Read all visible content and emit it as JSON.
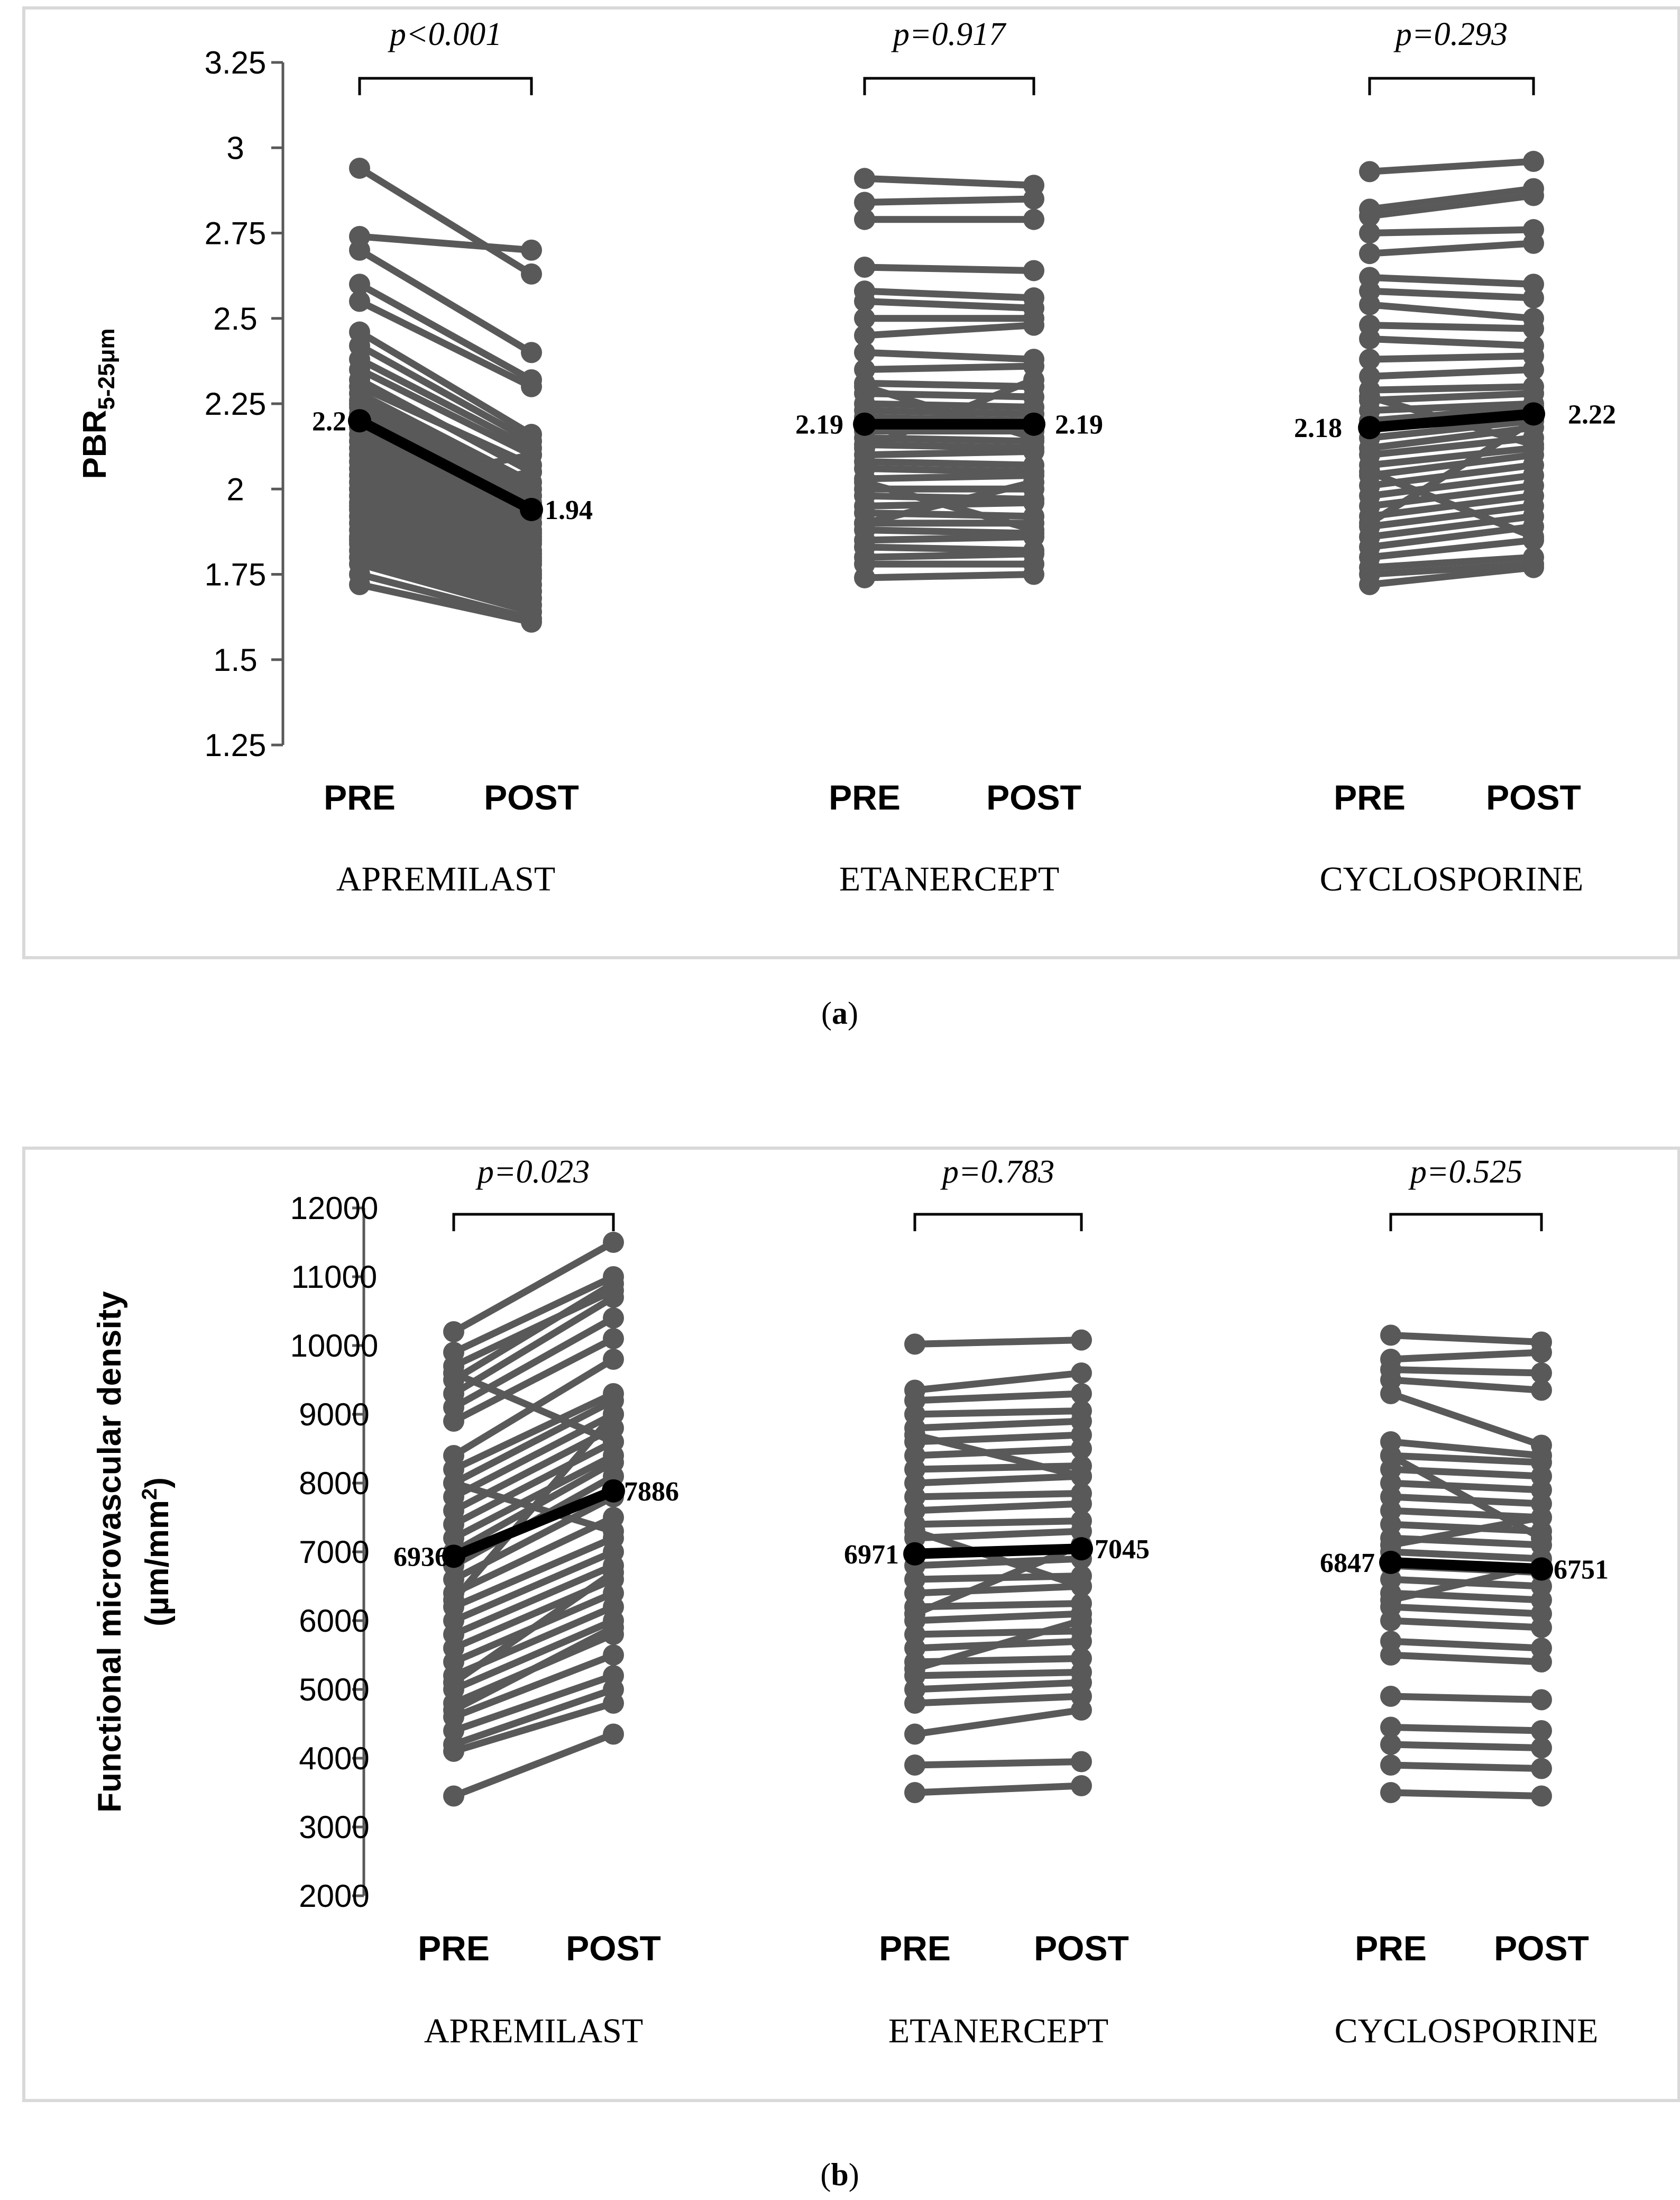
{
  "figure_captions": {
    "a": "(a)",
    "b": "(b)"
  },
  "panel_letters": {
    "a": "a",
    "b": "b"
  },
  "colors": {
    "subject_line": "#595959",
    "mean_line": "#000000",
    "axis": "#595959",
    "panel_border": "#d9d9d9",
    "accent_green": "#4f7f2a"
  },
  "chart_data": [
    {
      "type": "line",
      "panel": "a",
      "ylabel_main": "PBR",
      "ylabel_sub": "5-25μm",
      "ylim": [
        1.25,
        3.25
      ],
      "yticks": [
        "1.25",
        "1.5",
        "1.75",
        "2",
        "2.25",
        "2.5",
        "2.75",
        "3",
        "3.25"
      ],
      "tick_values": [
        1.25,
        1.5,
        1.75,
        2,
        2.25,
        2.5,
        2.75,
        3,
        3.25
      ],
      "groups": [
        {
          "name": "APREMILAST",
          "pre_label": "PRE",
          "post_label": "POST",
          "pvalue": "p<0.001",
          "mean_pre": 2.2,
          "mean_post": 1.94,
          "mean_pre_label": "2.2",
          "mean_post_label": "1.94",
          "pairs": [
            [
              2.94,
              2.63
            ],
            [
              2.74,
              2.7
            ],
            [
              2.7,
              2.4
            ],
            [
              2.6,
              2.32
            ],
            [
              2.55,
              2.3
            ],
            [
              2.46,
              2.16
            ],
            [
              2.42,
              2.14
            ],
            [
              2.38,
              2.12
            ],
            [
              2.35,
              2.1
            ],
            [
              2.32,
              2.05
            ],
            [
              2.3,
              2.07
            ],
            [
              2.28,
              2.02
            ],
            [
              2.26,
              2.0
            ],
            [
              2.24,
              1.98
            ],
            [
              2.22,
              1.96
            ],
            [
              2.2,
              1.95
            ],
            [
              2.18,
              1.94
            ],
            [
              2.16,
              1.92
            ],
            [
              2.14,
              1.9
            ],
            [
              2.12,
              1.88
            ],
            [
              2.1,
              1.87
            ],
            [
              2.08,
              1.86
            ],
            [
              2.06,
              1.85
            ],
            [
              2.04,
              1.84
            ],
            [
              2.02,
              1.82
            ],
            [
              2.0,
              1.81
            ],
            [
              1.98,
              1.8
            ],
            [
              1.96,
              1.79
            ],
            [
              1.94,
              1.78
            ],
            [
              1.92,
              1.76
            ],
            [
              1.9,
              1.75
            ],
            [
              1.88,
              1.74
            ],
            [
              1.86,
              1.72
            ],
            [
              1.84,
              1.7
            ],
            [
              1.82,
              1.68
            ],
            [
              1.8,
              1.66
            ],
            [
              1.78,
              1.64
            ],
            [
              1.75,
              1.62
            ],
            [
              1.72,
              1.61
            ],
            [
              2.0,
              2.1
            ],
            [
              1.95,
              2.05
            ],
            [
              2.25,
              1.9
            ],
            [
              1.85,
              1.95
            ]
          ]
        },
        {
          "name": "ETANERCEPT",
          "pre_label": "PRE",
          "post_label": "POST",
          "pvalue": "p=0.917",
          "mean_pre": 2.19,
          "mean_post": 2.19,
          "mean_pre_label": "2.19",
          "mean_post_label": "2.19",
          "pairs": [
            [
              2.91,
              2.89
            ],
            [
              2.84,
              2.85
            ],
            [
              2.79,
              2.79
            ],
            [
              2.65,
              2.64
            ],
            [
              2.58,
              2.56
            ],
            [
              2.55,
              2.53
            ],
            [
              2.5,
              2.5
            ],
            [
              2.45,
              2.48
            ],
            [
              2.4,
              2.38
            ],
            [
              2.35,
              2.36
            ],
            [
              2.31,
              2.3
            ],
            [
              2.28,
              2.27
            ],
            [
              2.25,
              2.24
            ],
            [
              2.23,
              2.22
            ],
            [
              2.21,
              2.2
            ],
            [
              2.19,
              2.19
            ],
            [
              2.17,
              2.17
            ],
            [
              2.15,
              2.14
            ],
            [
              2.13,
              2.12
            ],
            [
              2.1,
              2.11
            ],
            [
              2.08,
              2.07
            ],
            [
              2.06,
              2.05
            ],
            [
              2.03,
              2.04
            ],
            [
              2.0,
              2.0
            ],
            [
              1.98,
              1.97
            ],
            [
              1.95,
              1.96
            ],
            [
              1.93,
              1.92
            ],
            [
              1.9,
              1.9
            ],
            [
              1.88,
              1.87
            ],
            [
              1.85,
              1.86
            ],
            [
              1.83,
              1.82
            ],
            [
              1.8,
              1.81
            ],
            [
              1.78,
              1.78
            ],
            [
              1.74,
              1.75
            ],
            [
              2.3,
              2.15
            ],
            [
              2.12,
              2.32
            ],
            [
              1.9,
              2.02
            ],
            [
              2.02,
              1.88
            ]
          ]
        },
        {
          "name": "CYCLOSPORINE",
          "pre_label": "PRE",
          "post_label": "POST",
          "pvalue": "p=0.293",
          "mean_pre": 2.18,
          "mean_post": 2.22,
          "mean_pre_label": "2.18",
          "mean_post_label": "2.22",
          "pairs": [
            [
              2.93,
              2.96
            ],
            [
              2.82,
              2.88
            ],
            [
              2.8,
              2.86
            ],
            [
              2.75,
              2.76
            ],
            [
              2.69,
              2.72
            ],
            [
              2.62,
              2.6
            ],
            [
              2.58,
              2.56
            ],
            [
              2.54,
              2.5
            ],
            [
              2.48,
              2.47
            ],
            [
              2.44,
              2.42
            ],
            [
              2.38,
              2.39
            ],
            [
              2.33,
              2.35
            ],
            [
              2.29,
              2.3
            ],
            [
              2.26,
              2.28
            ],
            [
              2.23,
              2.25
            ],
            [
              2.2,
              2.24
            ],
            [
              2.18,
              2.22
            ],
            [
              2.15,
              2.2
            ],
            [
              2.12,
              2.18
            ],
            [
              2.1,
              2.15
            ],
            [
              2.07,
              2.12
            ],
            [
              2.04,
              2.1
            ],
            [
              2.01,
              2.07
            ],
            [
              1.98,
              2.04
            ],
            [
              1.95,
              2.01
            ],
            [
              1.92,
              1.98
            ],
            [
              1.89,
              1.95
            ],
            [
              1.86,
              1.92
            ],
            [
              1.83,
              1.89
            ],
            [
              1.8,
              1.85
            ],
            [
              1.77,
              1.8
            ],
            [
              1.75,
              1.78
            ],
            [
              1.72,
              1.77
            ],
            [
              2.27,
              2.13
            ],
            [
              1.9,
              2.2
            ],
            [
              2.05,
              1.86
            ]
          ]
        }
      ]
    },
    {
      "type": "line",
      "panel": "b",
      "ylabel_line1": "Functional microvascular density",
      "ylabel_line2_pre": "(µm/mm",
      "ylabel_line2_sup": "2",
      "ylabel_line2_post": ")",
      "ylim": [
        2000,
        12000
      ],
      "yticks": [
        "2000",
        "3000",
        "4000",
        "5000",
        "6000",
        "7000",
        "8000",
        "9000",
        "10000",
        "11000",
        "12000"
      ],
      "tick_values": [
        2000,
        3000,
        4000,
        5000,
        6000,
        7000,
        8000,
        9000,
        10000,
        11000,
        12000
      ],
      "groups": [
        {
          "name": "APREMILAST",
          "pre_label": "PRE",
          "post_label": "POST",
          "pvalue": "p=0.023",
          "mean_pre": 6936,
          "mean_post": 7886,
          "mean_pre_label": "6936",
          "mean_post_label": "7886",
          "pairs": [
            [
              10200,
              11500
            ],
            [
              9900,
              11000
            ],
            [
              9700,
              10800
            ],
            [
              9500,
              10900
            ],
            [
              9300,
              10700
            ],
            [
              9100,
              10400
            ],
            [
              8900,
              10100
            ],
            [
              8400,
              9800
            ],
            [
              8200,
              9300
            ],
            [
              8000,
              9200
            ],
            [
              7800,
              9000
            ],
            [
              7600,
              8800
            ],
            [
              7400,
              8600
            ],
            [
              7200,
              8400
            ],
            [
              7000,
              8300
            ],
            [
              6800,
              8100
            ],
            [
              6600,
              7800
            ],
            [
              6400,
              7500
            ],
            [
              6200,
              7200
            ],
            [
              6000,
              7000
            ],
            [
              5800,
              6800
            ],
            [
              5600,
              6600
            ],
            [
              5400,
              6400
            ],
            [
              5200,
              6200
            ],
            [
              5000,
              6000
            ],
            [
              4800,
              5800
            ],
            [
              4600,
              5500
            ],
            [
              4400,
              5200
            ],
            [
              4200,
              5000
            ],
            [
              4100,
              4800
            ],
            [
              3450,
              4350
            ],
            [
              9600,
              8600
            ],
            [
              8000,
              7300
            ],
            [
              5100,
              6700
            ],
            [
              4700,
              5900
            ],
            [
              6300,
              9000
            ]
          ]
        },
        {
          "name": "ETANERCEPT",
          "pre_label": "PRE",
          "post_label": "POST",
          "pvalue": "p=0.783",
          "mean_pre": 6971,
          "mean_post": 7045,
          "mean_pre_label": "6971",
          "mean_post_label": "7045",
          "pairs": [
            [
              10020,
              10080
            ],
            [
              9350,
              9600
            ],
            [
              9200,
              9300
            ],
            [
              9000,
              9050
            ],
            [
              8800,
              8900
            ],
            [
              8600,
              8700
            ],
            [
              8400,
              8500
            ],
            [
              8200,
              8250
            ],
            [
              8000,
              8100
            ],
            [
              7800,
              7850
            ],
            [
              7600,
              7700
            ],
            [
              7400,
              7450
            ],
            [
              7200,
              7300
            ],
            [
              7000,
              7050
            ],
            [
              6800,
              6900
            ],
            [
              6600,
              6650
            ],
            [
              6400,
              6500
            ],
            [
              6200,
              6250
            ],
            [
              6000,
              6100
            ],
            [
              5800,
              5850
            ],
            [
              5600,
              5700
            ],
            [
              5400,
              5450
            ],
            [
              5200,
              5250
            ],
            [
              5000,
              5100
            ],
            [
              4800,
              4900
            ],
            [
              4350,
              4700
            ],
            [
              3900,
              3950
            ],
            [
              3500,
              3600
            ],
            [
              7300,
              6500
            ],
            [
              6100,
              7100
            ],
            [
              8700,
              8100
            ],
            [
              5300,
              6000
            ]
          ]
        },
        {
          "name": "CYCLOSPORINE",
          "pre_label": "PRE",
          "post_label": "POST",
          "pvalue": "p=0.525",
          "mean_pre": 6847,
          "mean_post": 6751,
          "mean_pre_label": "6847",
          "mean_post_label": "6751",
          "pairs": [
            [
              10150,
              10050
            ],
            [
              9800,
              9900
            ],
            [
              9650,
              9600
            ],
            [
              9500,
              9350
            ],
            [
              9300,
              8550
            ],
            [
              8600,
              8400
            ],
            [
              8400,
              8300
            ],
            [
              8200,
              8100
            ],
            [
              8000,
              7900
            ],
            [
              7800,
              7700
            ],
            [
              7600,
              7500
            ],
            [
              7400,
              7300
            ],
            [
              7200,
              7100
            ],
            [
              7000,
              6900
            ],
            [
              6800,
              6700
            ],
            [
              6600,
              6500
            ],
            [
              6400,
              6300
            ],
            [
              6200,
              6100
            ],
            [
              6000,
              5900
            ],
            [
              5700,
              5600
            ],
            [
              5500,
              5400
            ],
            [
              4900,
              4850
            ],
            [
              4450,
              4400
            ],
            [
              4200,
              4150
            ],
            [
              3900,
              3850
            ],
            [
              3500,
              3450
            ],
            [
              7100,
              7500
            ],
            [
              6300,
              6800
            ],
            [
              8400,
              7200
            ]
          ]
        }
      ]
    }
  ]
}
